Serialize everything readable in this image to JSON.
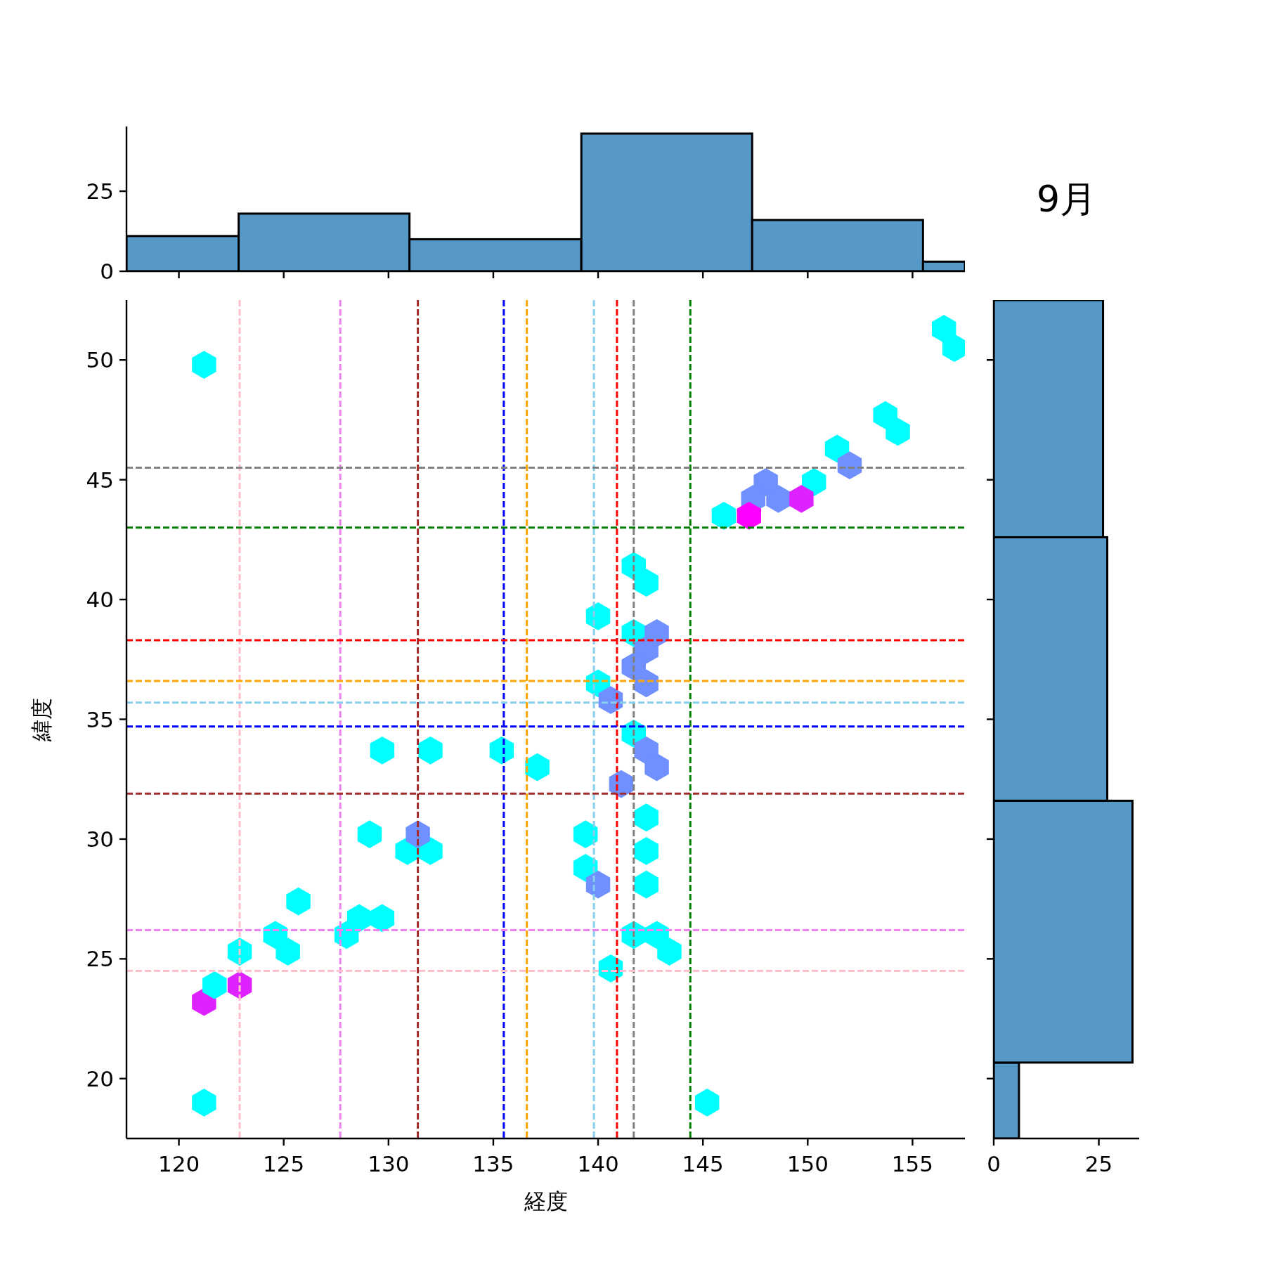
{
  "chart_data": [
    {
      "type": "histogram",
      "bins": [
        117.5,
        122.85,
        131.0,
        139.2,
        147.35,
        155.5,
        157.5
      ],
      "values": [
        11,
        18,
        10,
        43,
        16,
        3
      ],
      "color": "#5799c6",
      "xlim": [
        117.5,
        157.5
      ],
      "xticks": [
        120,
        125,
        130,
        135,
        140,
        145,
        150,
        155
      ],
      "ylim": [
        0,
        45.2
      ],
      "yticks": [
        0,
        25
      ],
      "tick_labels": "y"
    },
    {
      "type": "scatter",
      "xlabel": "経度",
      "ylabel": "緯度",
      "xlim": [
        117.5,
        157.5
      ],
      "ylim": [
        17.5,
        52.5
      ],
      "xticks": [
        120,
        125,
        130,
        135,
        140,
        145,
        150,
        155
      ],
      "yticks": [
        20,
        25,
        30,
        35,
        40,
        45,
        50
      ],
      "series": [
        {
          "x": [
            121.2,
            156.5,
            157.0,
            153.7,
            154.3,
            151.4,
            152.0,
            148.0,
            147.4,
            148.6,
            150.3,
            149.7,
            146.0,
            147.2,
            141.7,
            142.3,
            140.0,
            141.7,
            142.8,
            142.3,
            141.7,
            142.3,
            140.0,
            140.6,
            141.7,
            142.3,
            142.8,
            141.1,
            142.3,
            142.3,
            142.3,
            139.4,
            139.4,
            140.0,
            141.7,
            142.8,
            143.4,
            140.6,
            145.2,
            121.2,
            121.2,
            121.7,
            122.9,
            122.9,
            124.6,
            125.2,
            125.7,
            128.0,
            128.6,
            129.7,
            129.1,
            129.7,
            130.9,
            132.0,
            131.4,
            132.0,
            135.4,
            137.1
          ],
          "values": [
            49.8,
            51.3,
            50.5,
            47.7,
            47.0,
            46.3,
            45.6,
            44.9,
            44.2,
            44.2,
            44.9,
            44.2,
            43.5,
            43.5,
            41.4,
            40.7,
            39.3,
            38.6,
            38.6,
            37.9,
            37.2,
            36.5,
            36.5,
            35.8,
            34.4,
            33.7,
            33.0,
            32.3,
            30.9,
            29.5,
            28.1,
            30.2,
            28.8,
            28.1,
            26.0,
            26.0,
            25.3,
            24.6,
            19.0,
            19.0,
            23.2,
            23.9,
            23.9,
            25.3,
            26.0,
            25.3,
            27.4,
            26.0,
            26.7,
            26.7,
            30.2,
            33.7,
            29.5,
            29.5,
            30.2,
            33.7,
            33.7,
            33.0
          ],
          "colors": [
            "#00ffff",
            "#00ffff",
            "#00ffff",
            "#00ffff",
            "#00ffff",
            "#00ffff",
            "#7090ff",
            "#7090ff",
            "#7090ff",
            "#7090ff",
            "#00ffff",
            "#dd22ff",
            "#00ffff",
            "#ff00ff",
            "#00ffff",
            "#00ffff",
            "#00ffff",
            "#00ffff",
            "#7090ff",
            "#7090ff",
            "#7090ff",
            "#7090ff",
            "#00ffff",
            "#7090ff",
            "#00ffff",
            "#7090ff",
            "#7090ff",
            "#7090ff",
            "#00ffff",
            "#00ffff",
            "#00ffff",
            "#00ffff",
            "#00ffff",
            "#7090ff",
            "#00ffff",
            "#00ffff",
            "#00ffff",
            "#00ffff",
            "#00ffff",
            "#00ffff",
            "#dd22ff",
            "#00ffff",
            "#dd22ff",
            "#00ffff",
            "#00ffff",
            "#00ffff",
            "#00ffff",
            "#00ffff",
            "#00ffff",
            "#00ffff",
            "#00ffff",
            "#00ffff",
            "#00ffff",
            "#00ffff",
            "#7090ff",
            "#00ffff",
            "#00ffff",
            "#00ffff"
          ]
        }
      ],
      "ref_lines": [
        {
          "axis": "x",
          "value": 122.9,
          "color": "#ffc0cb",
          "line_style": "dashed"
        },
        {
          "axis": "x",
          "value": 127.7,
          "color": "#ee82ee",
          "line_style": "dashed"
        },
        {
          "axis": "x",
          "value": 131.4,
          "color": "#a52a2a",
          "line_style": "dashed"
        },
        {
          "axis": "x",
          "value": 135.5,
          "color": "#0000ff",
          "line_style": "dashed"
        },
        {
          "axis": "x",
          "value": 136.6,
          "color": "#ffa500",
          "line_style": "dashed"
        },
        {
          "axis": "x",
          "value": 139.8,
          "color": "#87ceeb",
          "line_style": "dashed"
        },
        {
          "axis": "x",
          "value": 140.9,
          "color": "#ff0000",
          "line_style": "dashed"
        },
        {
          "axis": "x",
          "value": 141.7,
          "color": "#808080",
          "line_style": "dashed"
        },
        {
          "axis": "x",
          "value": 144.4,
          "color": "#008000",
          "line_style": "dashed"
        },
        {
          "axis": "y",
          "value": 45.5,
          "color": "#808080",
          "line_style": "dashed"
        },
        {
          "axis": "y",
          "value": 43.0,
          "color": "#008000",
          "line_style": "dashed"
        },
        {
          "axis": "y",
          "value": 38.3,
          "color": "#ff0000",
          "line_style": "dashed"
        },
        {
          "axis": "y",
          "value": 36.6,
          "color": "#ffa500",
          "line_style": "dashed"
        },
        {
          "axis": "y",
          "value": 35.7,
          "color": "#87ceeb",
          "line_style": "dashed"
        },
        {
          "axis": "y",
          "value": 34.7,
          "color": "#0000ff",
          "line_style": "dashed"
        },
        {
          "axis": "y",
          "value": 31.9,
          "color": "#a52a2a",
          "line_style": "dashed"
        },
        {
          "axis": "y",
          "value": 26.2,
          "color": "#ee82ee",
          "line_style": "dashed"
        },
        {
          "axis": "y",
          "value": 24.5,
          "color": "#ffc0cb",
          "line_style": "dashed"
        }
      ]
    },
    {
      "type": "histogram",
      "orientation": "horizontal",
      "title": "9月",
      "bins": [
        17.5,
        20.67,
        31.6,
        42.6,
        52.5
      ],
      "values": [
        6,
        33,
        27,
        26
      ],
      "color": "#5799c6",
      "xlim": [
        0,
        34.6
      ],
      "xticks": [
        0,
        25
      ],
      "ylim": [
        17.5,
        52.5
      ],
      "yticks": [
        20,
        25,
        30,
        35,
        40,
        45,
        50
      ],
      "tick_labels": "x"
    }
  ]
}
